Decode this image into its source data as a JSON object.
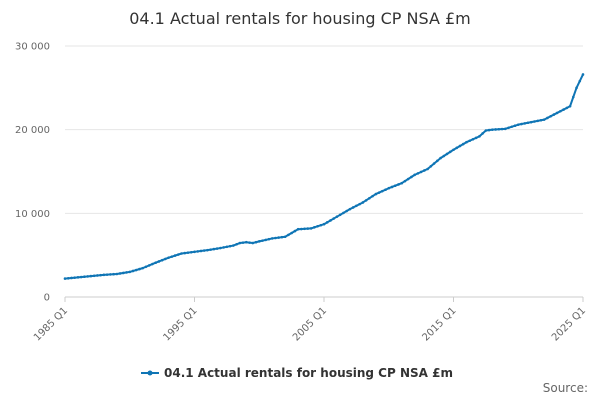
{
  "chart_data": {
    "type": "line",
    "title": "04.1 Actual rentals for housing CP NSA £m",
    "xlabel": "",
    "ylabel": "",
    "x_start": "1985 Q1",
    "x_end": "2025 Q1",
    "x_tick_labels": [
      "1985 Q1",
      "1995 Q1",
      "2005 Q1",
      "2015 Q1",
      "2025 Q1"
    ],
    "y_tick_labels": [
      "0",
      "10 000",
      "20 000",
      "30 000"
    ],
    "y_ticks": [
      0,
      10000,
      20000,
      30000
    ],
    "ylim": [
      0,
      30000
    ],
    "grid": "horizontal",
    "legend_position": "bottom",
    "source_label": "Source:",
    "series": [
      {
        "name": "04.1 Actual rentals for housing CP NSA £m",
        "color": "#0f75b5",
        "points": [
          [
            "1985 Q1",
            2200
          ],
          [
            "1986 Q1",
            2350
          ],
          [
            "1987 Q1",
            2500
          ],
          [
            "1988 Q1",
            2650
          ],
          [
            "1989 Q1",
            2750
          ],
          [
            "1990 Q1",
            3000
          ],
          [
            "1991 Q1",
            3450
          ],
          [
            "1992 Q1",
            4100
          ],
          [
            "1993 Q1",
            4700
          ],
          [
            "1994 Q1",
            5200
          ],
          [
            "1995 Q1",
            5400
          ],
          [
            "1996 Q1",
            5600
          ],
          [
            "1997 Q1",
            5850
          ],
          [
            "1998 Q1",
            6150
          ],
          [
            "1998 Q3",
            6450
          ],
          [
            "1999 Q1",
            6550
          ],
          [
            "1999 Q3",
            6450
          ],
          [
            "2000 Q1",
            6650
          ],
          [
            "2001 Q1",
            7000
          ],
          [
            "2002 Q1",
            7200
          ],
          [
            "2003 Q1",
            8100
          ],
          [
            "2004 Q1",
            8200
          ],
          [
            "2005 Q1",
            8700
          ],
          [
            "2006 Q1",
            9600
          ],
          [
            "2007 Q1",
            10500
          ],
          [
            "2008 Q1",
            11300
          ],
          [
            "2009 Q1",
            12300
          ],
          [
            "2010 Q1",
            13000
          ],
          [
            "2011 Q1",
            13600
          ],
          [
            "2012 Q1",
            14600
          ],
          [
            "2013 Q1",
            15300
          ],
          [
            "2014 Q1",
            16600
          ],
          [
            "2015 Q1",
            17600
          ],
          [
            "2016 Q1",
            18500
          ],
          [
            "2017 Q1",
            19200
          ],
          [
            "2017 Q3",
            19900
          ],
          [
            "2018 Q1",
            20000
          ],
          [
            "2019 Q1",
            20100
          ],
          [
            "2020 Q1",
            20600
          ],
          [
            "2021 Q1",
            20900
          ],
          [
            "2022 Q1",
            21200
          ],
          [
            "2023 Q1",
            22000
          ],
          [
            "2024 Q1",
            22800
          ],
          [
            "2024 Q3",
            25000
          ],
          [
            "2025 Q1",
            26600
          ]
        ]
      }
    ]
  }
}
